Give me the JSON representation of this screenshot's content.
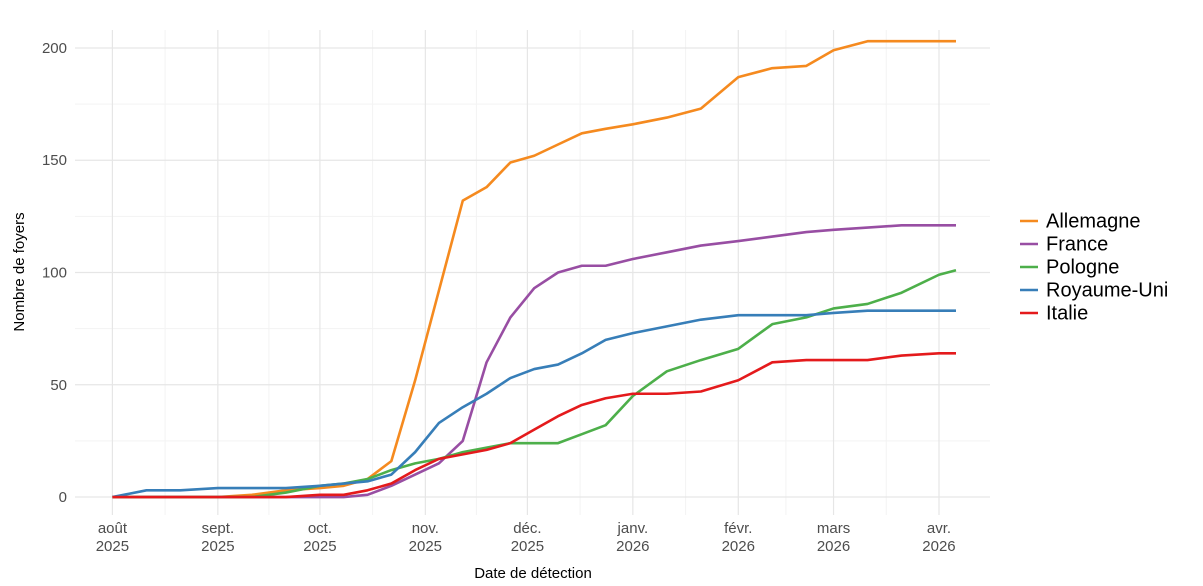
{
  "chart_data": {
    "type": "line",
    "x_label": "Date de détection",
    "y_label": "Nombre de foyers",
    "x": [
      "2025-08-01",
      "2025-08-11",
      "2025-08-21",
      "2025-09-01",
      "2025-09-11",
      "2025-09-21",
      "2025-10-01",
      "2025-10-08",
      "2025-10-15",
      "2025-10-22",
      "2025-10-29",
      "2025-11-05",
      "2025-11-12",
      "2025-11-19",
      "2025-11-26",
      "2025-12-03",
      "2025-12-10",
      "2025-12-17",
      "2025-12-24",
      "2026-01-01",
      "2026-01-11",
      "2026-01-21",
      "2026-02-01",
      "2026-02-11",
      "2026-02-21",
      "2026-03-01",
      "2026-03-11",
      "2026-03-21",
      "2026-04-01",
      "2026-04-06"
    ],
    "series": [
      {
        "name": "Allemagne",
        "color": "#f58a1f",
        "values": [
          0,
          0,
          0,
          0,
          1,
          3,
          4,
          5,
          8,
          16,
          52,
          92,
          132,
          138,
          149,
          152,
          157,
          162,
          164,
          166,
          169,
          173,
          187,
          191,
          192,
          199,
          203,
          203,
          203,
          203
        ]
      },
      {
        "name": "France",
        "color": "#984ea3",
        "values": [
          0,
          0,
          0,
          0,
          0,
          0,
          0,
          0,
          1,
          5,
          10,
          15,
          25,
          60,
          80,
          93,
          100,
          103,
          103,
          106,
          109,
          112,
          114,
          116,
          118,
          119,
          120,
          121,
          121,
          121
        ]
      },
      {
        "name": "Pologne",
        "color": "#4daf4a",
        "values": [
          0,
          0,
          0,
          0,
          0,
          2,
          5,
          6,
          8,
          12,
          15,
          17,
          20,
          22,
          24,
          24,
          24,
          28,
          32,
          45,
          56,
          61,
          66,
          77,
          80,
          84,
          86,
          91,
          99,
          101
        ]
      },
      {
        "name": "Royaume-Uni",
        "color": "#377eb8",
        "values": [
          0,
          3,
          3,
          4,
          4,
          4,
          5,
          6,
          7,
          10,
          20,
          33,
          40,
          46,
          53,
          57,
          59,
          64,
          70,
          73,
          76,
          79,
          81,
          81,
          81,
          82,
          83,
          83,
          83,
          83
        ]
      },
      {
        "name": "Italie",
        "color": "#e41a1c",
        "values": [
          0,
          0,
          0,
          0,
          0,
          0,
          1,
          1,
          3,
          6,
          12,
          17,
          19,
          21,
          24,
          30,
          36,
          41,
          44,
          46,
          46,
          47,
          52,
          60,
          61,
          61,
          61,
          63,
          64,
          64
        ]
      }
    ],
    "xlim": [
      "2025-07-21",
      "2026-04-16"
    ],
    "xticks": [
      {
        "value": "2025-08-01",
        "label": "août 2025"
      },
      {
        "value": "2025-09-01",
        "label": "sept. 2025"
      },
      {
        "value": "2025-10-01",
        "label": "oct. 2025"
      },
      {
        "value": "2025-11-01",
        "label": "nov. 2025"
      },
      {
        "value": "2025-12-01",
        "label": "déc. 2025"
      },
      {
        "value": "2026-01-01",
        "label": "janv. 2026"
      },
      {
        "value": "2026-02-01",
        "label": "févr. 2026"
      },
      {
        "value": "2026-03-01",
        "label": "mars 2026"
      },
      {
        "value": "2026-04-01",
        "label": "avr. 2026"
      }
    ],
    "ylim": [
      -8,
      208
    ],
    "yticks": [
      0,
      50,
      100,
      150,
      200
    ],
    "grid": true,
    "legend": "right"
  }
}
